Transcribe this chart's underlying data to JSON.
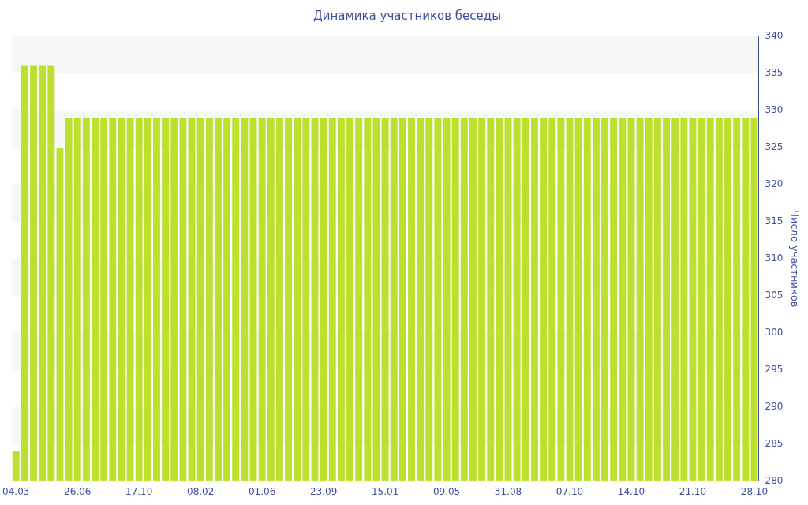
{
  "chart_data": {
    "type": "bar",
    "title": "Динамика участников беседы",
    "ylabel": "Число участников",
    "categories": [
      "04.03",
      null,
      null,
      null,
      null,
      null,
      null,
      "26.06",
      null,
      null,
      null,
      null,
      null,
      null,
      "17.10",
      null,
      null,
      null,
      null,
      null,
      null,
      "08.02",
      null,
      null,
      null,
      null,
      null,
      null,
      "01.06",
      null,
      null,
      null,
      null,
      null,
      null,
      "23.09",
      null,
      null,
      null,
      null,
      null,
      null,
      "15.01",
      null,
      null,
      null,
      null,
      null,
      null,
      "09.05",
      null,
      null,
      null,
      null,
      null,
      null,
      "31.08",
      null,
      null,
      null,
      null,
      null,
      null,
      "07.10",
      null,
      null,
      null,
      null,
      null,
      null,
      "14.10",
      null,
      null,
      null,
      null,
      null,
      null,
      "21.10",
      null,
      null,
      null,
      null,
      null,
      null,
      "28.10"
    ],
    "values": [
      284,
      336,
      336,
      336,
      336,
      325,
      329,
      329,
      329,
      329,
      329,
      329,
      329,
      329,
      329,
      329,
      329,
      329,
      329,
      329,
      329,
      329,
      329,
      329,
      329,
      329,
      329,
      329,
      329,
      329,
      329,
      329,
      329,
      329,
      329,
      329,
      329,
      329,
      329,
      329,
      329,
      329,
      329,
      329,
      329,
      329,
      329,
      329,
      329,
      329,
      329,
      329,
      329,
      329,
      329,
      329,
      329,
      329,
      329,
      329,
      329,
      329,
      329,
      329,
      329,
      329,
      329,
      329,
      329,
      329,
      329,
      329,
      329,
      329,
      329,
      329,
      329,
      329,
      329,
      329,
      329,
      329,
      329,
      329,
      329
    ],
    "color": "#bde02f",
    "ylim": [
      280,
      340
    ],
    "yticks": [
      280,
      285,
      290,
      295,
      300,
      305,
      310,
      315,
      320,
      325,
      330,
      335,
      340
    ],
    "legend": false
  }
}
